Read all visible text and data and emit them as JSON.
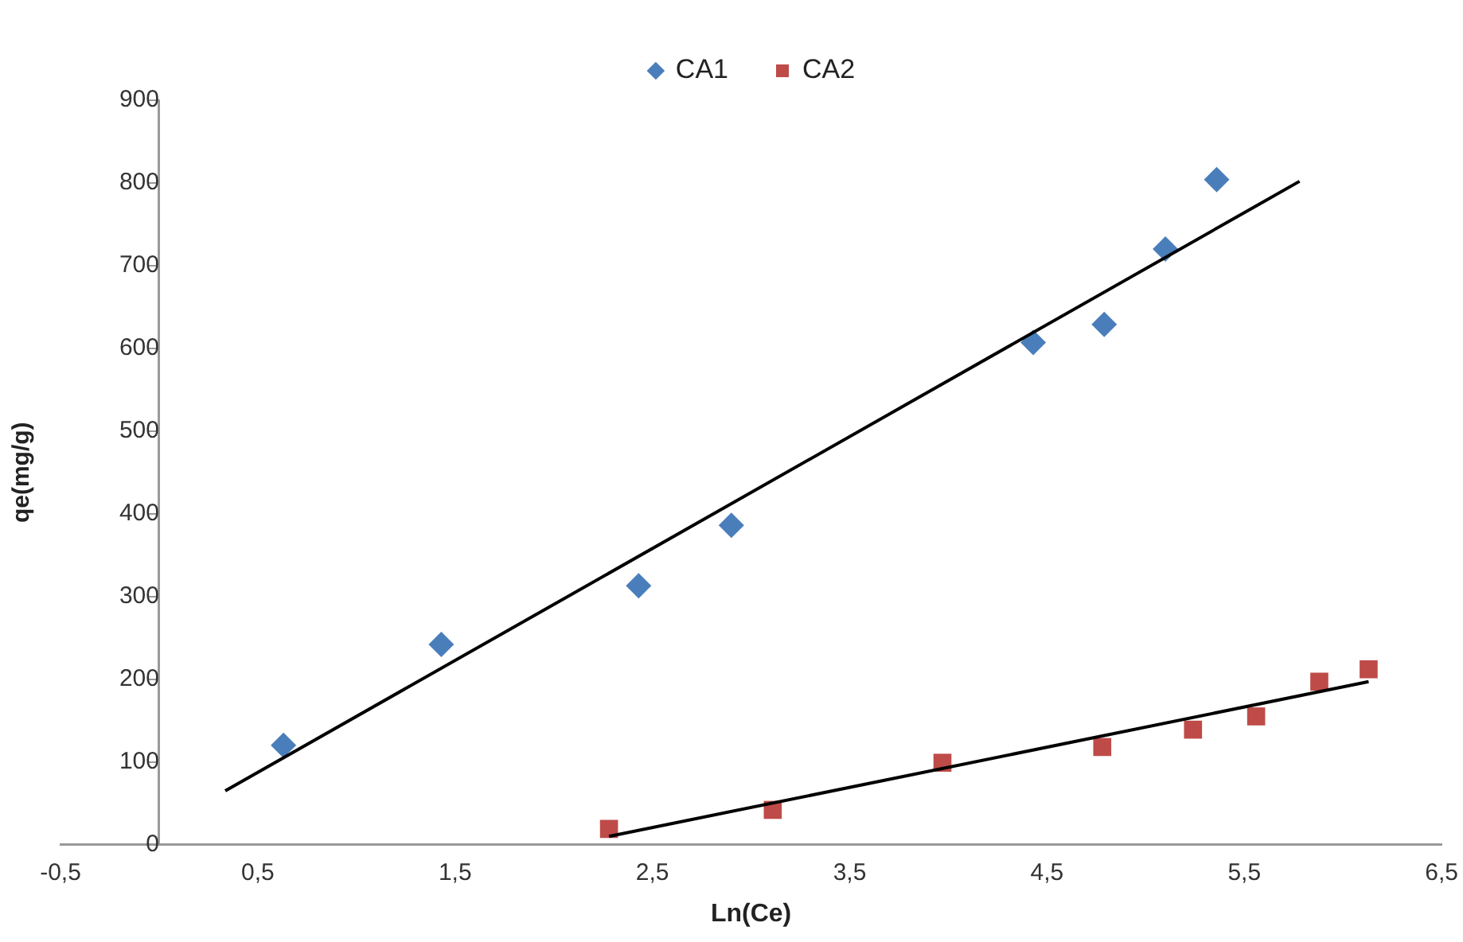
{
  "chart_data": {
    "type": "scatter",
    "xlabel": "Ln(Ce)",
    "ylabel": "qe(mg/g)",
    "xlim": [
      -0.5,
      6.5
    ],
    "xticks": [
      {
        "value": -0.5,
        "label": "-0,5"
      },
      {
        "value": 0.5,
        "label": "0,5"
      },
      {
        "value": 1.5,
        "label": "1,5"
      },
      {
        "value": 2.5,
        "label": "2,5"
      },
      {
        "value": 3.5,
        "label": "3,5"
      },
      {
        "value": 4.5,
        "label": "4,5"
      },
      {
        "value": 5.5,
        "label": "5,5"
      },
      {
        "value": 6.5,
        "label": "6,5"
      }
    ],
    "ylim": [
      0,
      900
    ],
    "yticks": [
      0,
      100,
      200,
      300,
      400,
      500,
      600,
      700,
      800,
      900
    ],
    "legend": "top",
    "grid": false,
    "series": [
      {
        "name": "CA1",
        "marker": "diamond",
        "color": "#4a7ebb",
        "x": [
          0.63,
          1.43,
          2.43,
          2.9,
          4.43,
          4.79,
          5.1,
          5.36
        ],
        "values": [
          120,
          242,
          313,
          386,
          607,
          629,
          720,
          804
        ]
      },
      {
        "name": "CA2",
        "marker": "square",
        "color": "#be4b48",
        "x": [
          2.28,
          3.11,
          3.97,
          4.78,
          5.24,
          5.56,
          5.88,
          6.13
        ],
        "values": [
          19,
          42,
          99,
          118,
          139,
          155,
          197,
          212
        ]
      },
      {
        "type": "line",
        "marker": "none",
        "color": "#000000",
        "x": [
          0.335,
          5.78
        ],
        "values": [
          65,
          802
        ]
      },
      {
        "type": "line",
        "marker": "none",
        "color": "#000000",
        "x": [
          2.28,
          6.13
        ],
        "values": [
          10,
          197
        ]
      }
    ]
  }
}
